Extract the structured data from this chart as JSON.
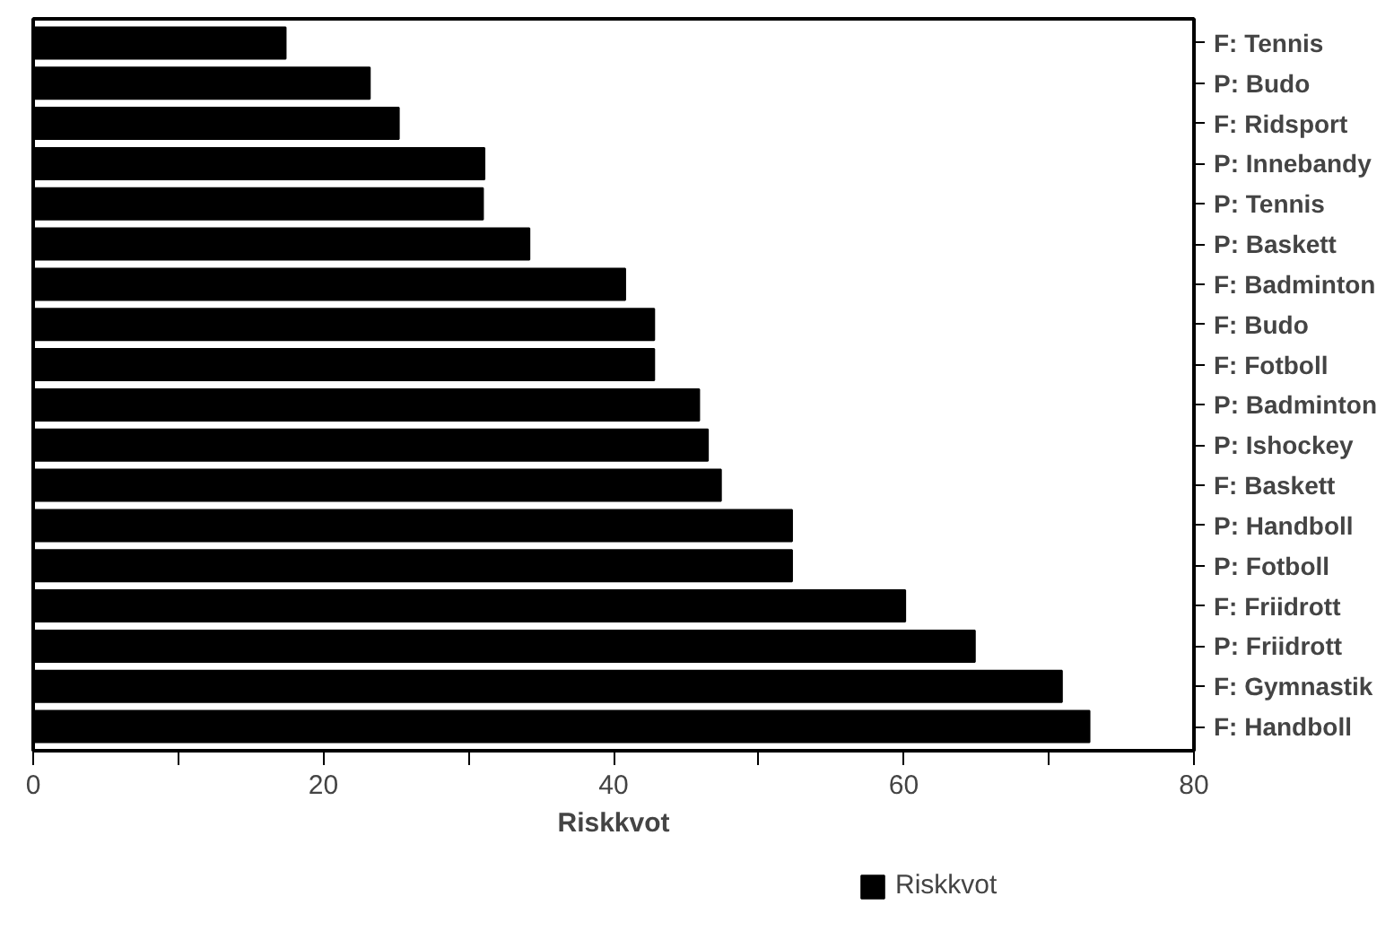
{
  "chart_data": {
    "type": "bar",
    "orientation": "horizontal",
    "xlabel": "Riskkvot",
    "categories": [
      "F: Tennis",
      "P: Budo",
      "F: Ridsport",
      "P: Innebandy",
      "P: Tennis",
      "P: Baskett",
      "F: Badminton",
      "F: Budo",
      "F: Fotboll",
      "P: Badminton",
      "P: Ishockey",
      "F: Baskett",
      "P: Handboll",
      "P: Fotboll",
      "F: Friidrott",
      "P: Friidrott",
      "F: Gymnastik",
      "F: Handboll"
    ],
    "series": [
      {
        "name": "Riskkvot",
        "color": "#000000",
        "values": [
          17.4,
          23.2,
          25.2,
          31.1,
          31.0,
          34.2,
          40.8,
          42.8,
          42.8,
          45.9,
          46.5,
          47.4,
          52.3,
          52.3,
          60.1,
          64.9,
          70.9,
          72.8
        ]
      }
    ],
    "xlim": [
      0,
      80
    ],
    "xticks": [
      0,
      {
        "value": 10,
        "label": null
      },
      20,
      {
        "value": 30,
        "label": null
      },
      40,
      {
        "value": 50,
        "label": null
      },
      60,
      {
        "value": 70,
        "label": null
      },
      80
    ],
    "grid": false,
    "legend": "bottom"
  }
}
